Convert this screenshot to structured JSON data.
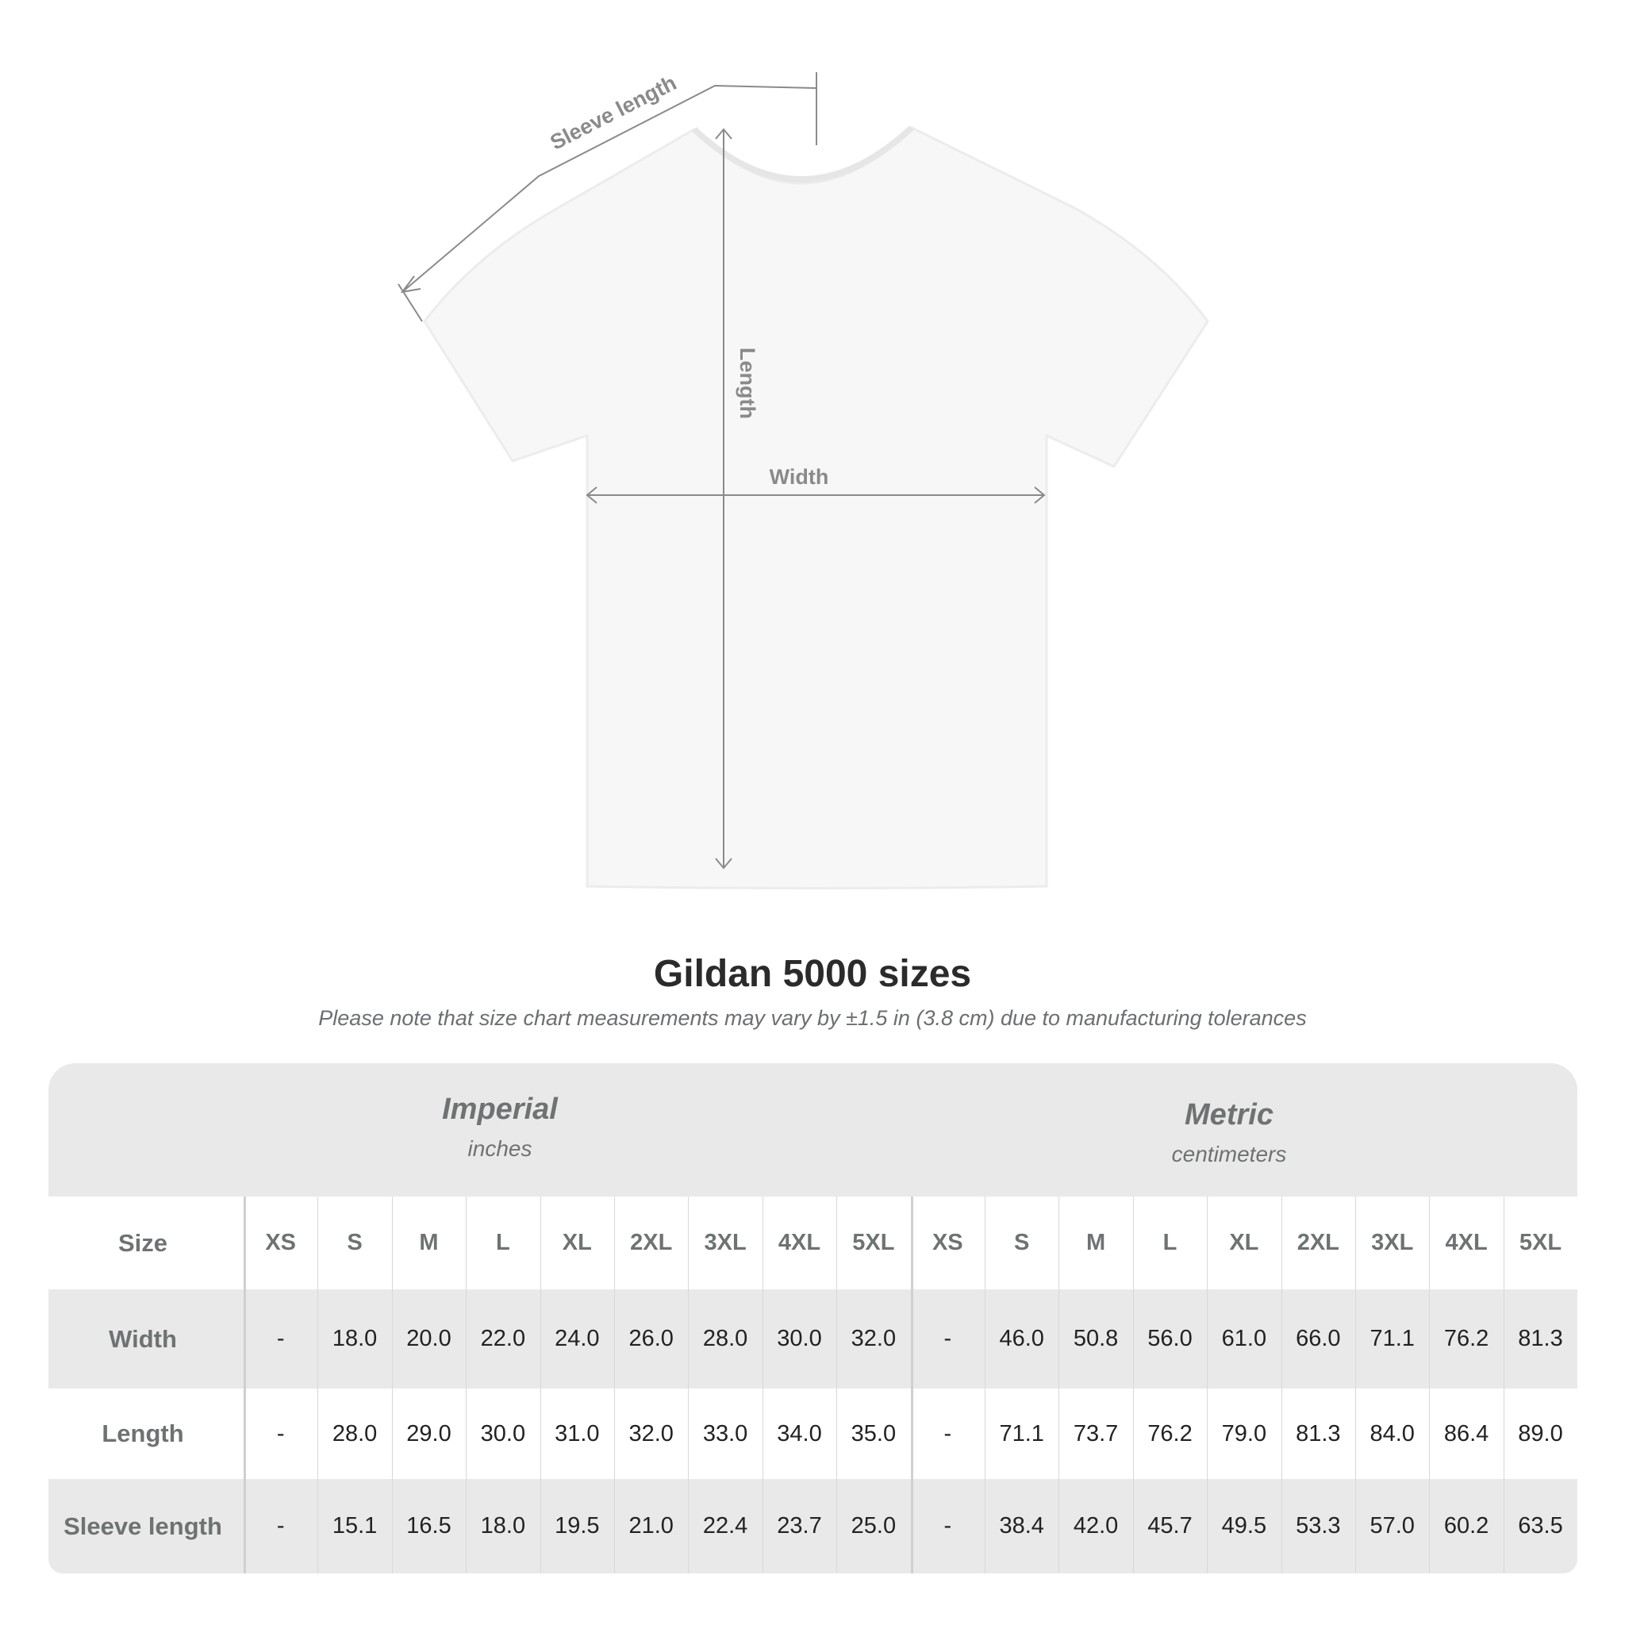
{
  "diagram": {
    "labels": {
      "sleeve": "Sleeve length",
      "length": "Length",
      "width": "Width"
    },
    "shirt_color": "#f7f7f7",
    "line_color": "#8a8a8a"
  },
  "title": "Gildan 5000 sizes",
  "note": "Please note that size chart measurements may vary by ±1.5 in (3.8 cm) due to manufacturing tolerances",
  "table": {
    "groups": [
      {
        "title": "Imperial",
        "unit": "inches"
      },
      {
        "title": "Metric",
        "unit": "centimeters"
      }
    ],
    "size_label": "Size",
    "sizes": [
      "XS",
      "S",
      "M",
      "L",
      "XL",
      "2XL",
      "3XL",
      "4XL",
      "5XL"
    ],
    "rows": [
      {
        "label": "Width",
        "imperial": [
          "-",
          "18.0",
          "20.0",
          "22.0",
          "24.0",
          "26.0",
          "28.0",
          "30.0",
          "32.0"
        ],
        "metric": [
          "-",
          "46.0",
          "50.8",
          "56.0",
          "61.0",
          "66.0",
          "71.1",
          "76.2",
          "81.3"
        ]
      },
      {
        "label": "Length",
        "imperial": [
          "-",
          "28.0",
          "29.0",
          "30.0",
          "31.0",
          "32.0",
          "33.0",
          "34.0",
          "35.0"
        ],
        "metric": [
          "-",
          "71.1",
          "73.7",
          "76.2",
          "79.0",
          "81.3",
          "84.0",
          "86.4",
          "89.0"
        ]
      },
      {
        "label": "Sleeve length",
        "imperial": [
          "-",
          "15.1",
          "16.5",
          "18.0",
          "19.5",
          "21.0",
          "22.4",
          "23.7",
          "25.0"
        ],
        "metric": [
          "-",
          "38.4",
          "42.0",
          "45.7",
          "49.5",
          "53.3",
          "57.0",
          "60.2",
          "63.5"
        ]
      }
    ]
  }
}
